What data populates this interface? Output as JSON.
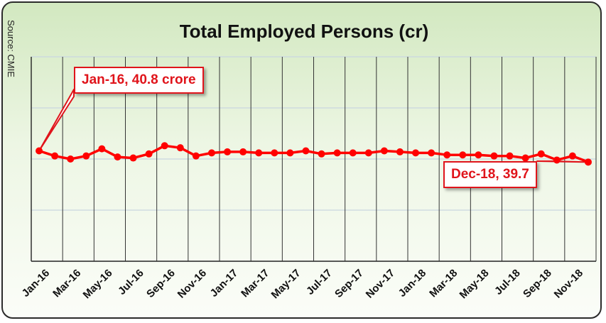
{
  "source": "Source: CMIE",
  "chart_data": {
    "type": "line",
    "title": "Total Employed Persons (cr)",
    "xlabel": "",
    "ylabel": "",
    "x": [
      "Jan-16",
      "Feb-16",
      "Mar-16",
      "Apr-16",
      "May-16",
      "Jun-16",
      "Jul-16",
      "Aug-16",
      "Sep-16",
      "Oct-16",
      "Nov-16",
      "Dec-16",
      "Jan-17",
      "Feb-17",
      "Mar-17",
      "Apr-17",
      "May-17",
      "Jun-17",
      "Jul-17",
      "Aug-17",
      "Sep-17",
      "Oct-17",
      "Nov-17",
      "Dec-17",
      "Jan-18",
      "Feb-18",
      "Mar-18",
      "Apr-18",
      "May-18",
      "Jun-18",
      "Jul-18",
      "Aug-18",
      "Sep-18",
      "Oct-18",
      "Nov-18",
      "Dec-18"
    ],
    "tick_labels": [
      "Jan-16",
      "Mar-16",
      "May-16",
      "Jul-16",
      "Sep-16",
      "Nov-16",
      "Jan-17",
      "Mar-17",
      "May-17",
      "Jul-17",
      "Sep-17",
      "Nov-17",
      "Jan-18",
      "Mar-18",
      "May-18",
      "Jul-18",
      "Sep-18",
      "Nov-18"
    ],
    "series": [
      {
        "name": "",
        "color": "#ff0000",
        "values": [
          40.8,
          40.3,
          40.0,
          40.3,
          41.0,
          40.2,
          40.1,
          40.5,
          41.3,
          41.1,
          40.3,
          40.6,
          40.7,
          40.7,
          40.6,
          40.6,
          40.6,
          40.8,
          40.5,
          40.6,
          40.6,
          40.6,
          40.8,
          40.7,
          40.6,
          40.6,
          40.4,
          40.4,
          40.4,
          40.3,
          40.3,
          40.1,
          40.5,
          39.9,
          40.3,
          39.7
        ]
      }
    ],
    "ylim": [
      30,
      50
    ],
    "grid": true,
    "annotations": [
      {
        "label": "Jan-16, 40.8 crore",
        "x": "Jan-16",
        "y": 40.8
      },
      {
        "label": "Dec-18, 39.7",
        "x": "Dec-18",
        "y": 39.7
      }
    ]
  }
}
